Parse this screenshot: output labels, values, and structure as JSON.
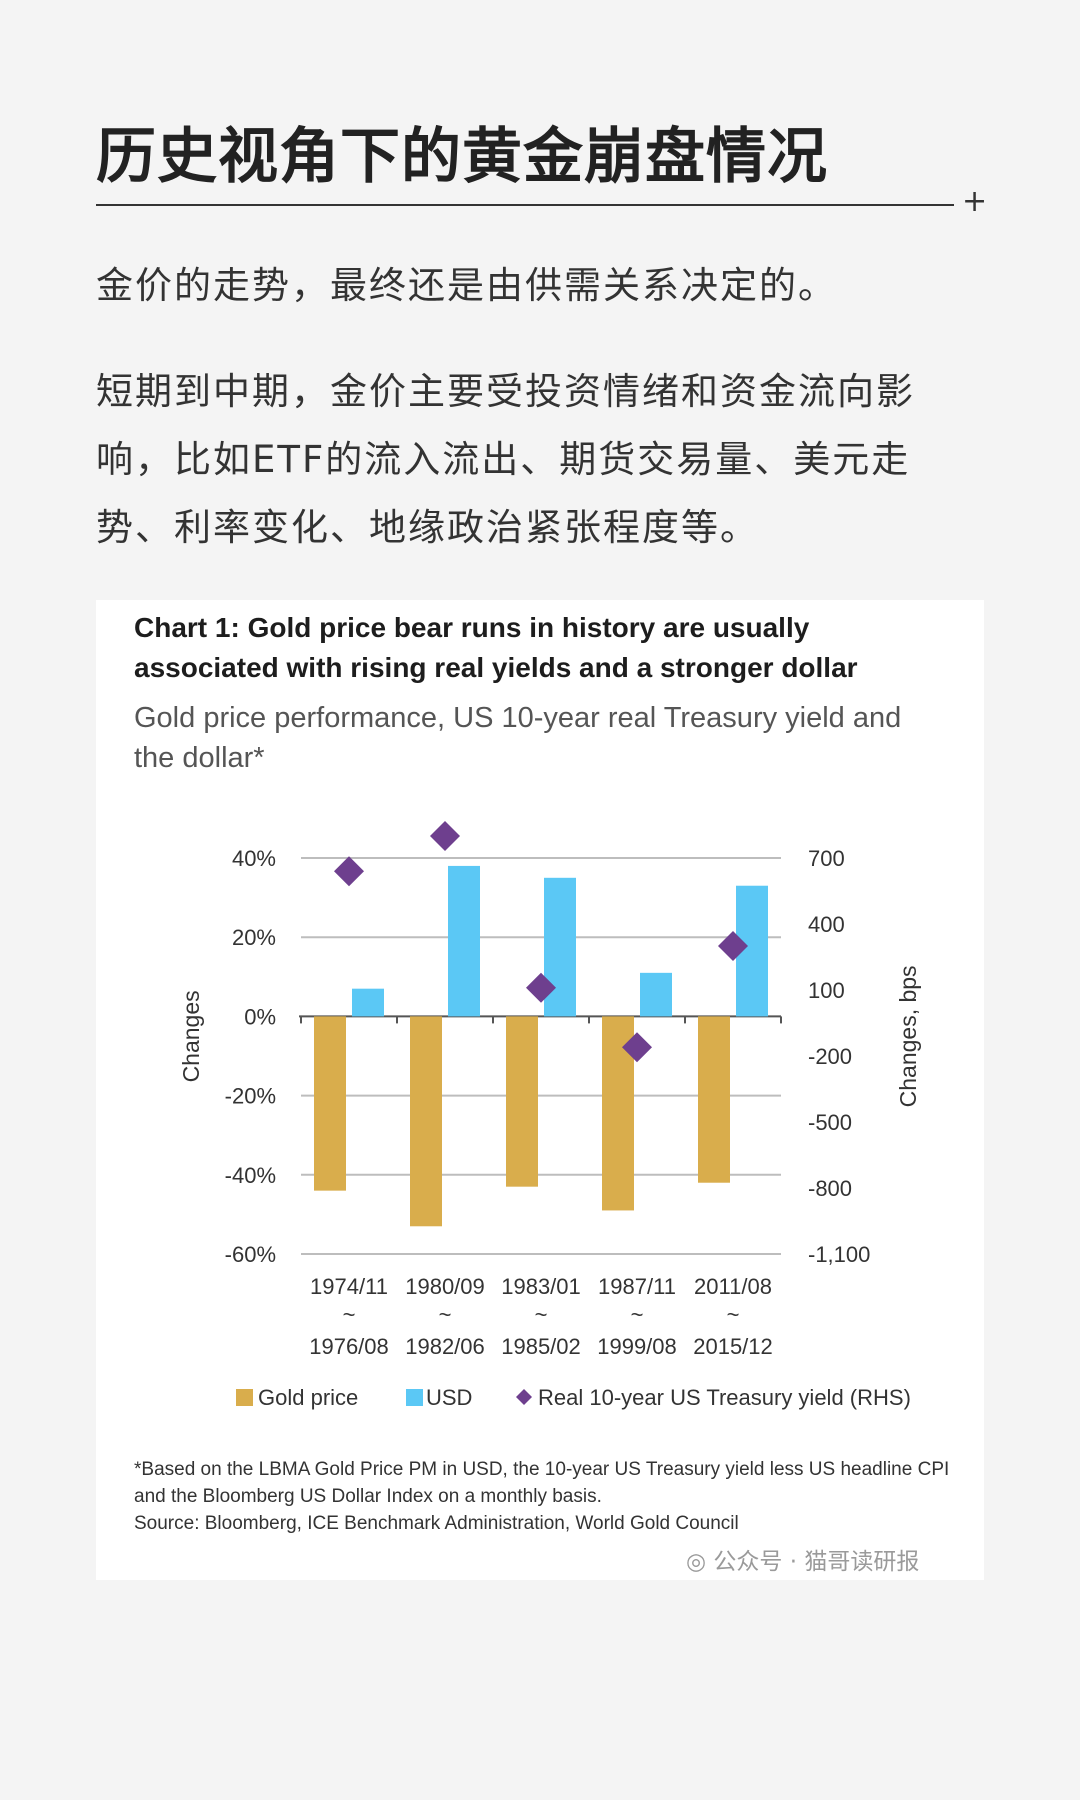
{
  "article": {
    "title": "历史视角下的黄金崩盘情况",
    "para1": "金价的走势，最终还是由供需关系决定的。",
    "para2": "短期到中期，金价主要受投资情绪和资金流向影响，比如ETF的流入流出、期货交易量、美元走势、利率变化、地缘政治紧张程度等。",
    "watermark": "公众号 · 猫哥读研报"
  },
  "colors": {
    "gold": "#d9ad4c",
    "usd": "#5bc8f5",
    "yield": "#6e3f8e"
  },
  "chart_data": {
    "type": "bar",
    "title": "Chart 1: Gold price bear runs in history are usually associated with rising real yields and a stronger dollar",
    "subtitle": "Gold price performance, US 10-year real Treasury yield and the dollar*",
    "categories": [
      {
        "start": "1974/11",
        "sep": "~",
        "end": "1976/08"
      },
      {
        "start": "1980/09",
        "sep": "~",
        "end": "1982/06"
      },
      {
        "start": "1983/01",
        "sep": "~",
        "end": "1985/02"
      },
      {
        "start": "1987/11",
        "sep": "~",
        "end": "1999/08"
      },
      {
        "start": "2011/08",
        "sep": "~",
        "end": "2015/12"
      }
    ],
    "series": [
      {
        "name": "Gold price",
        "type": "bar",
        "axis": "left",
        "values": [
          -44,
          -53,
          -43,
          -49,
          -42
        ]
      },
      {
        "name": "USD",
        "type": "bar",
        "axis": "left",
        "values": [
          7,
          38,
          35,
          11,
          33
        ]
      },
      {
        "name": "Real 10-year US Treasury yield (RHS)",
        "type": "scatter",
        "axis": "right",
        "values": [
          640,
          800,
          110,
          -160,
          300
        ]
      }
    ],
    "ylabel": "Changes",
    "y2label": "Changes, bps",
    "ylim": [
      -60,
      40
    ],
    "y2lim": [
      -1100,
      700
    ],
    "yticks": [
      "40%",
      "20%",
      "0%",
      "-20%",
      "-40%",
      "-60%"
    ],
    "y2ticks": [
      "700",
      "400",
      "100",
      "-200",
      "-500",
      "-800",
      "-1,100"
    ],
    "footnote1": "*Based on the LBMA Gold Price PM in USD, the 10-year US Treasury yield less US headline CPI and the Bloomberg US Dollar Index on a monthly basis.",
    "footnote2": "Source: Bloomberg, ICE Benchmark Administration, World Gold Council"
  }
}
